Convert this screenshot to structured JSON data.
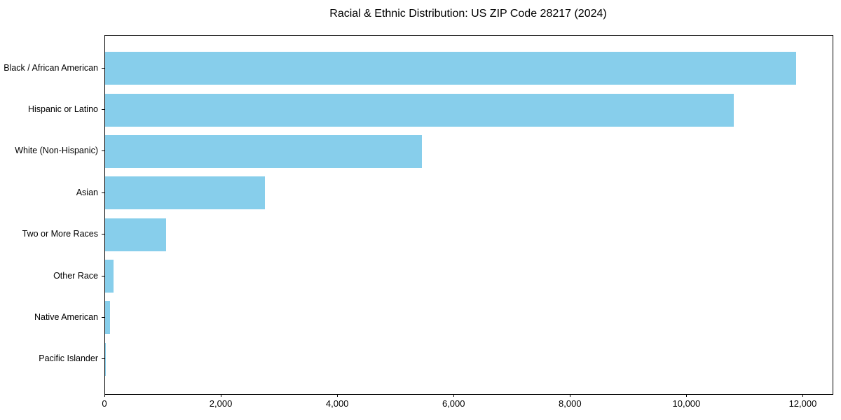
{
  "chart_data": {
    "type": "bar",
    "orientation": "horizontal",
    "title": "Racial & Ethnic Distribution: US ZIP Code 28217 (2024)",
    "categories": [
      "Black / African American",
      "Hispanic or Latino",
      "White (Non-Hispanic)",
      "Asian",
      "Two or More Races",
      "Other Race",
      "Native American",
      "Pacific Islander"
    ],
    "values": [
      11875,
      10805,
      5440,
      2745,
      1050,
      145,
      85,
      10
    ],
    "xlabel": "",
    "ylabel": "",
    "xlim": [
      0,
      12500
    ],
    "xticks": [
      0,
      2000,
      4000,
      6000,
      8000,
      10000,
      12000
    ],
    "xtick_labels": [
      "0",
      "2,000",
      "4,000",
      "6,000",
      "8,000",
      "10,000",
      "12,000"
    ],
    "bar_color": "#87CEEB",
    "axis_color": "#000000",
    "background_color": "#ffffff",
    "grid": false,
    "legend": "none"
  }
}
